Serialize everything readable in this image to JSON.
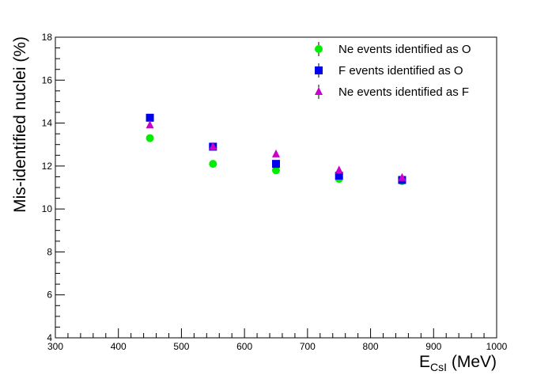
{
  "chart_data": {
    "type": "scatter",
    "xlabel": {
      "main": "E",
      "sub": "CsI",
      "unit": " (MeV)"
    },
    "ylabel": "Mis-identified nuclei (%)",
    "xlim": [
      300,
      1000
    ],
    "ylim": [
      4,
      18
    ],
    "xticks": [
      "300",
      "400",
      "500",
      "600",
      "700",
      "800",
      "900",
      "1000"
    ],
    "yticks": [
      "4",
      "6",
      "8",
      "10",
      "12",
      "14",
      "16",
      "18"
    ],
    "legend_position": "top-right",
    "grid": false,
    "series": [
      {
        "name": "Ne events identified as O",
        "marker": "circle",
        "color": "#00ee00",
        "x": [
          450,
          550,
          650,
          750,
          850
        ],
        "y": [
          13.3,
          12.1,
          11.8,
          11.4,
          11.3
        ]
      },
      {
        "name": "F events identified as O",
        "marker": "square",
        "color": "#0000ee",
        "x": [
          450,
          550,
          650,
          750,
          850
        ],
        "y": [
          14.25,
          12.9,
          12.1,
          11.55,
          11.35
        ]
      },
      {
        "name": "Ne events identified as F",
        "marker": "triangle",
        "color": "#cc00cc",
        "x": [
          450,
          550,
          650,
          750,
          850
        ],
        "y": [
          13.9,
          12.9,
          12.55,
          11.8,
          11.45
        ]
      }
    ]
  }
}
